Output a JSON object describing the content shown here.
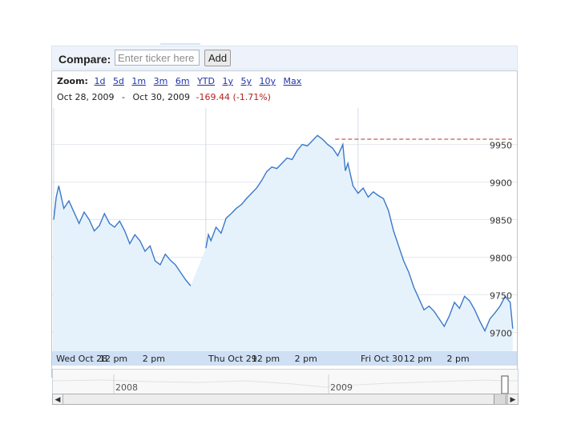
{
  "compare": {
    "label": "Compare:",
    "placeholder": "Enter ticker here",
    "value": "",
    "add_label": "Add"
  },
  "zoom": {
    "label": "Zoom:",
    "options": [
      "1d",
      "5d",
      "1m",
      "3m",
      "6m",
      "YTD",
      "1y",
      "5y",
      "10y",
      "Max"
    ]
  },
  "range": {
    "start": "Oct 28, 2009",
    "separator": "-",
    "end": "Oct 30, 2009",
    "change": "-169.44 (-1.71%)"
  },
  "chart_data": {
    "type": "line",
    "x_labels": [
      "Wed Oct 28",
      "12 pm",
      "2 pm",
      "Thu Oct 29",
      "12 pm",
      "2 pm",
      "Fri Oct 30",
      "12 pm",
      "2 pm"
    ],
    "y_ticks": [
      9700,
      9750,
      9800,
      9850,
      9900,
      9950
    ],
    "ylim": [
      9675,
      9990
    ],
    "reference_level": 9957,
    "colors": {
      "line": "#3b78c9",
      "fill": "#e6f2fb",
      "axis_band": "#cfe0f4",
      "reference": "#b03030"
    },
    "series": [
      {
        "values": [
          [
            0,
            9850
          ],
          [
            0.05,
            9880
          ],
          [
            0.1,
            9895
          ],
          [
            0.2,
            9865
          ],
          [
            0.3,
            9875
          ],
          [
            0.4,
            9860
          ],
          [
            0.5,
            9845
          ],
          [
            0.6,
            9860
          ],
          [
            0.7,
            9850
          ],
          [
            0.8,
            9835
          ],
          [
            0.9,
            9842
          ],
          [
            1.0,
            9858
          ],
          [
            1.1,
            9845
          ],
          [
            1.2,
            9840
          ],
          [
            1.3,
            9848
          ],
          [
            1.4,
            9835
          ],
          [
            1.5,
            9818
          ],
          [
            1.6,
            9830
          ],
          [
            1.7,
            9822
          ],
          [
            1.8,
            9808
          ],
          [
            1.9,
            9815
          ],
          [
            2.0,
            9795
          ],
          [
            2.1,
            9790
          ],
          [
            2.2,
            9804
          ],
          [
            2.3,
            9796
          ],
          [
            2.4,
            9790
          ],
          [
            2.5,
            9780
          ],
          [
            2.6,
            9770
          ],
          [
            2.7,
            9762
          ],
          [
            3.0,
            9812
          ],
          [
            3.05,
            9830
          ],
          [
            3.1,
            9822
          ],
          [
            3.2,
            9840
          ],
          [
            3.3,
            9832
          ],
          [
            3.4,
            9852
          ],
          [
            3.5,
            9858
          ],
          [
            3.6,
            9865
          ],
          [
            3.7,
            9870
          ],
          [
            3.8,
            9878
          ],
          [
            3.9,
            9885
          ],
          [
            4.0,
            9892
          ],
          [
            4.1,
            9902
          ],
          [
            4.2,
            9914
          ],
          [
            4.3,
            9920
          ],
          [
            4.4,
            9918
          ],
          [
            4.5,
            9925
          ],
          [
            4.6,
            9932
          ],
          [
            4.7,
            9930
          ],
          [
            4.8,
            9942
          ],
          [
            4.9,
            9950
          ],
          [
            5.0,
            9948
          ],
          [
            5.1,
            9955
          ],
          [
            5.2,
            9962
          ],
          [
            5.3,
            9957
          ],
          [
            5.4,
            9950
          ],
          [
            5.5,
            9945
          ],
          [
            5.6,
            9935
          ],
          [
            5.7,
            9950
          ],
          [
            5.75,
            9915
          ],
          [
            5.8,
            9925
          ],
          [
            5.9,
            9895
          ],
          [
            6.0,
            9885
          ],
          [
            6.1,
            9892
          ],
          [
            6.2,
            9880
          ],
          [
            6.3,
            9887
          ],
          [
            6.4,
            9882
          ],
          [
            6.5,
            9878
          ],
          [
            6.6,
            9862
          ],
          [
            6.7,
            9835
          ],
          [
            6.8,
            9815
          ],
          [
            6.9,
            9795
          ],
          [
            7.0,
            9780
          ],
          [
            7.1,
            9760
          ],
          [
            7.2,
            9745
          ],
          [
            7.3,
            9730
          ],
          [
            7.4,
            9735
          ],
          [
            7.5,
            9728
          ],
          [
            7.6,
            9718
          ],
          [
            7.7,
            9708
          ],
          [
            7.8,
            9722
          ],
          [
            7.9,
            9740
          ],
          [
            8.0,
            9732
          ],
          [
            8.1,
            9748
          ],
          [
            8.2,
            9742
          ],
          [
            8.3,
            9730
          ],
          [
            8.4,
            9715
          ],
          [
            8.5,
            9702
          ],
          [
            8.6,
            9718
          ],
          [
            8.7,
            9726
          ],
          [
            8.8,
            9735
          ],
          [
            8.9,
            9748
          ],
          [
            9.0,
            9740
          ],
          [
            9.05,
            9705
          ]
        ]
      }
    ],
    "navigator_labels": [
      "2008",
      "2009"
    ]
  }
}
